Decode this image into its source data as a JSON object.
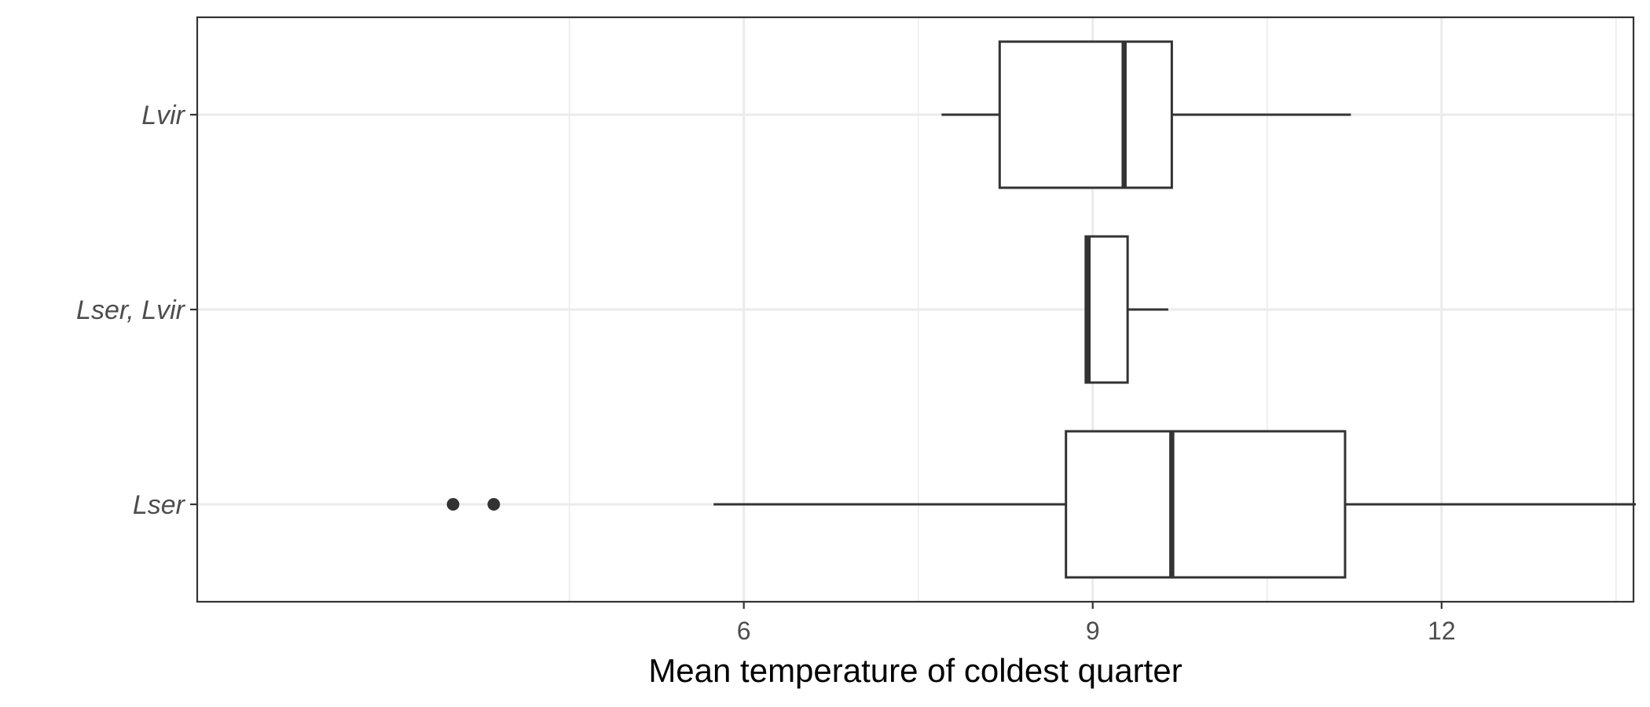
{
  "chart_data": {
    "type": "boxplot",
    "orientation": "horizontal",
    "xlabel": "Mean temperature of coldest quarter",
    "ylabel": "",
    "xlim": [
      1.3,
      13.65
    ],
    "x_ticks": [
      6,
      9,
      12
    ],
    "x_minor_gridlines": [
      4.5,
      7.5,
      10.5,
      13.5
    ],
    "grid": true,
    "theme": "bw",
    "categories": [
      "Lvir",
      "Lser, Lvir",
      "Lser"
    ],
    "boxes": [
      {
        "category": "Lvir",
        "whisker_low": 7.7,
        "q1": 8.2,
        "median": 9.27,
        "q3": 9.68,
        "whisker_high": 11.22,
        "outliers": []
      },
      {
        "category": "Lser, Lvir",
        "whisker_low": 8.94,
        "q1": 8.94,
        "median": 8.96,
        "q3": 9.3,
        "whisker_high": 9.65,
        "outliers": []
      },
      {
        "category": "Lser",
        "whisker_low": 5.74,
        "q1": 8.77,
        "median": 9.68,
        "q3": 11.17,
        "whisker_high": 13.67,
        "outliers": [
          3.5,
          3.85
        ]
      }
    ]
  }
}
